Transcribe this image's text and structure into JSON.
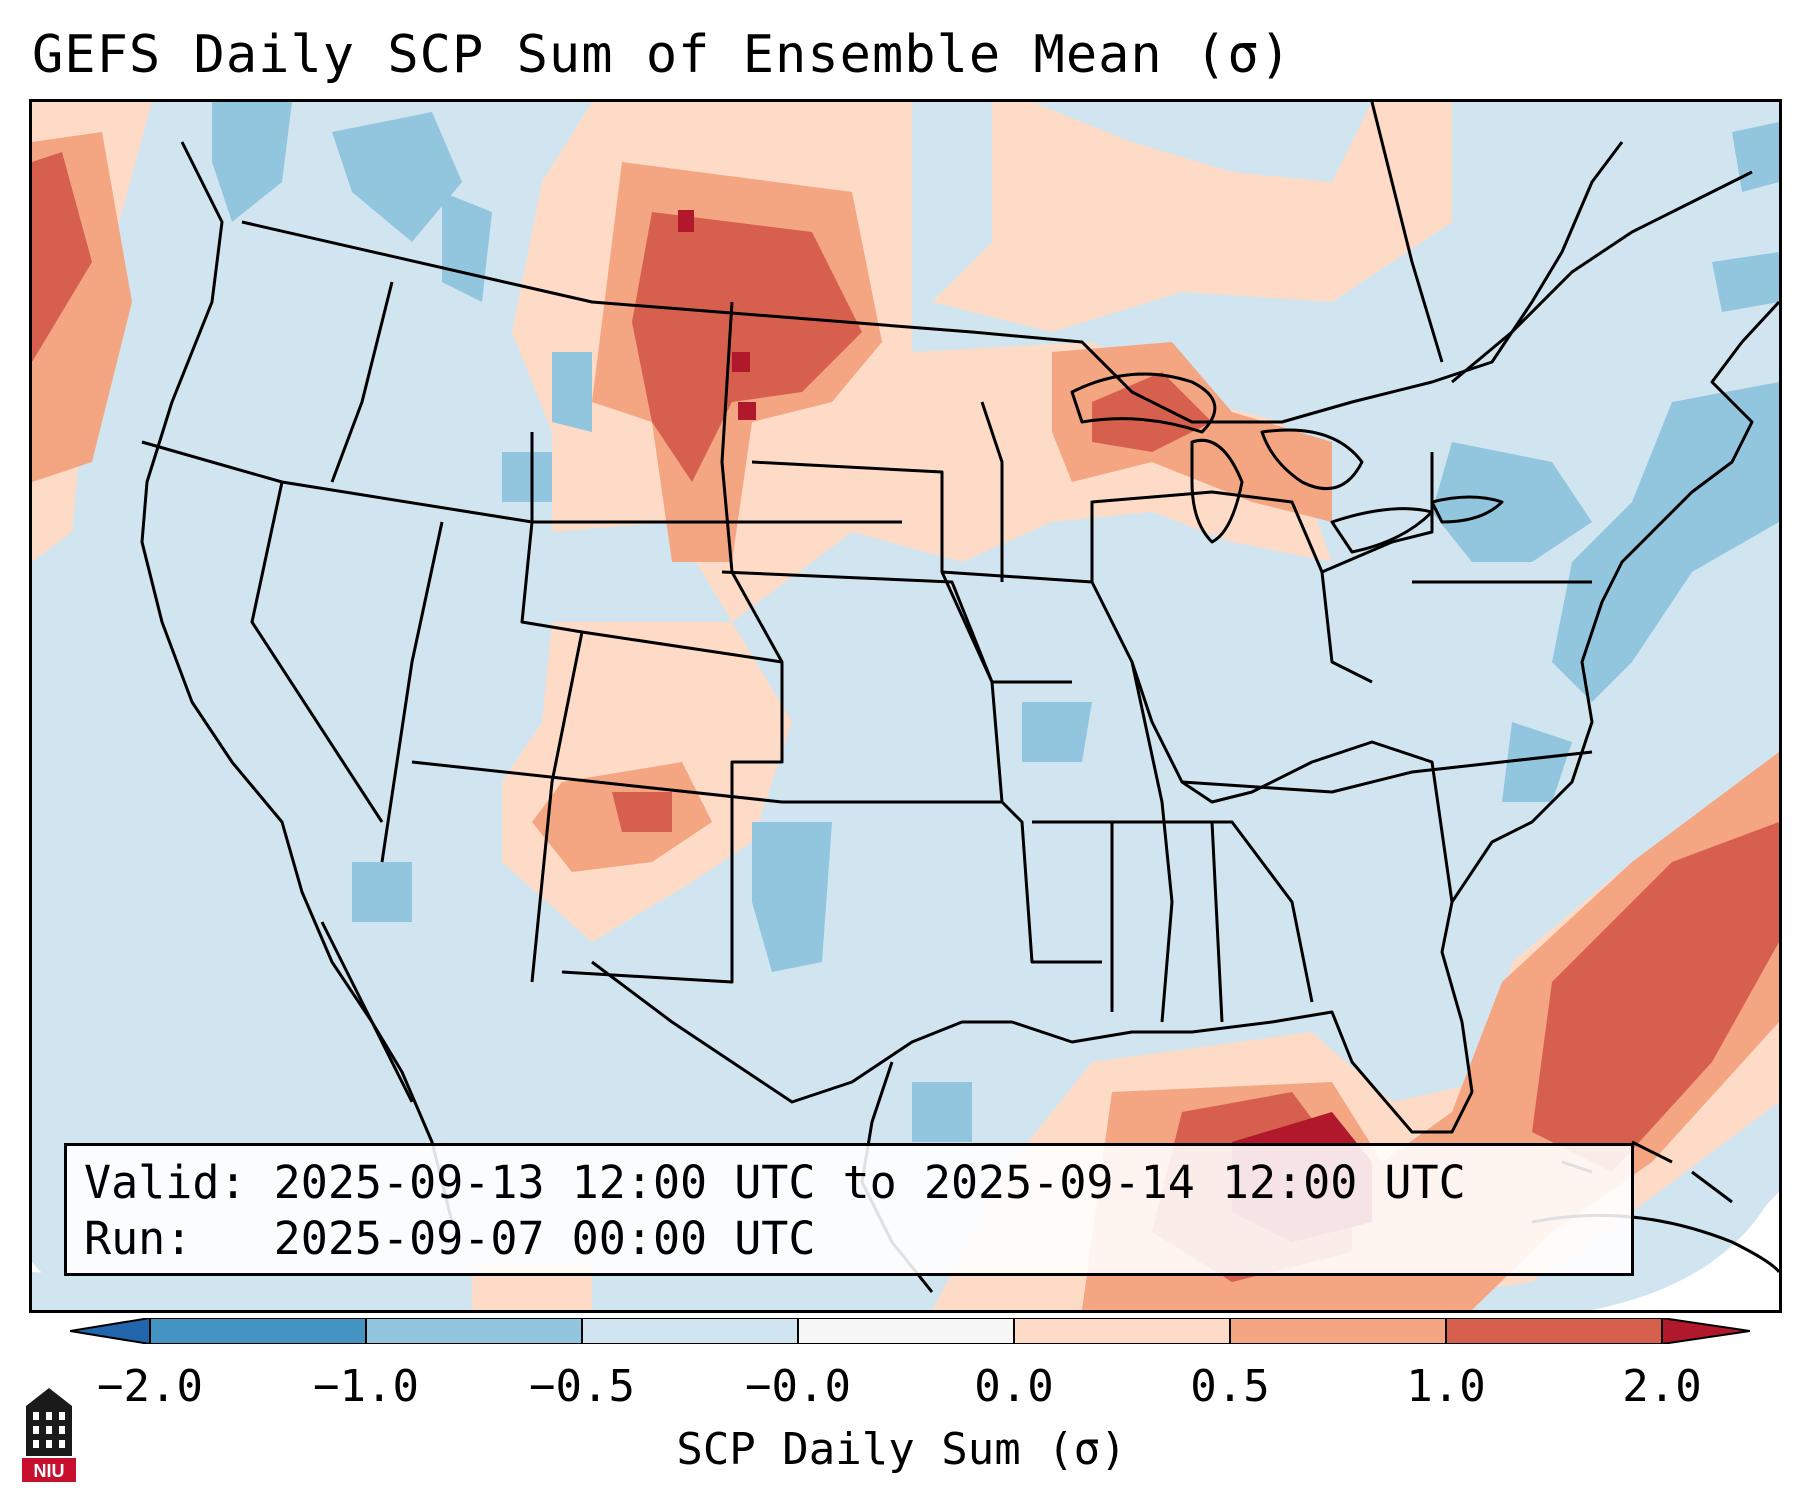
{
  "title": "GEFS Daily SCP Sum of Ensemble Mean (σ)",
  "info": {
    "valid_line": "Valid: 2025-09-13 12:00 UTC to 2025-09-14 12:00 UTC",
    "run_line": "Run:   2025-09-07 00:00 UTC"
  },
  "colorbar": {
    "title": "SCP Daily Sum (σ)",
    "ticks": [
      "−2.0",
      "−1.0",
      "−0.5",
      "−0.0",
      "0.0",
      "0.5",
      "1.0",
      "2.0"
    ],
    "colors": {
      "extend_min": "#2166ac",
      "b1": "#4393c3",
      "b2": "#92c5de",
      "b3": "#d1e5f0",
      "b4": "#f7f7f7",
      "b5": "#fddbc7",
      "b6": "#f4a582",
      "b7": "#d6604d",
      "extend_max": "#b2182b"
    }
  },
  "logo": {
    "text": "NIU"
  }
}
